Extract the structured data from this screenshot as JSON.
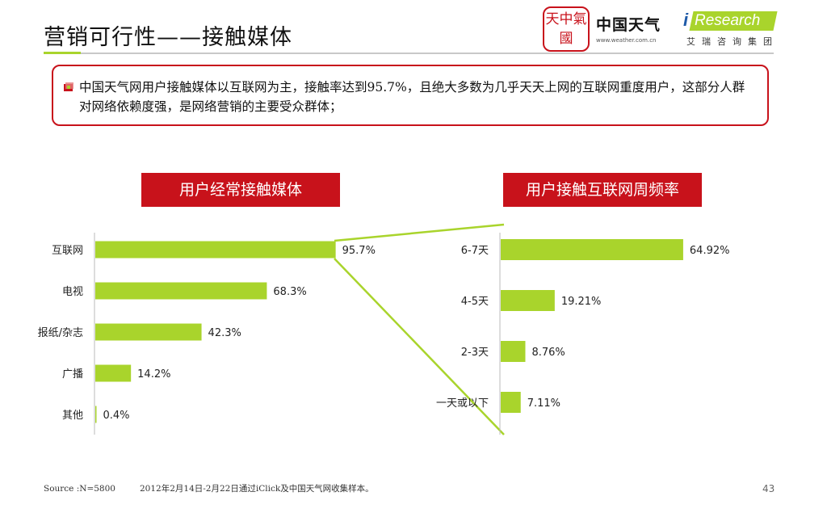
{
  "header": {
    "title": "营销可行性——接触媒体",
    "weather_logo": {
      "seal_text": "天中氣國",
      "name": "中国天气",
      "url": "www.weather.com.cn"
    },
    "iresearch_logo": {
      "i": "i",
      "word": "Research",
      "cn": "艾瑞咨询集团"
    }
  },
  "callout": {
    "text": "中国天气网用户接触媒体以互联网为主，接触率达到95.7%，且绝大多数为几乎天天上网的互联网重度用户，这部分人群对网络依赖度强，是网络营销的主要受众群体；"
  },
  "colors": {
    "accent": "#c8121b",
    "bar": "#a9d42c",
    "connector": "#a9d42c"
  },
  "chart_data": [
    {
      "type": "bar",
      "orientation": "horizontal",
      "title": "用户经常接触媒体",
      "categories": [
        "互联网",
        "电视",
        "报纸/杂志",
        "广播",
        "其他"
      ],
      "values": [
        95.7,
        68.3,
        42.3,
        14.2,
        0.4
      ],
      "value_labels": [
        "95.7%",
        "68.3%",
        "42.3%",
        "14.2%",
        "0.4%"
      ],
      "xlim": [
        0,
        100
      ],
      "grid": false
    },
    {
      "type": "bar",
      "orientation": "horizontal",
      "title": "用户接触互联网周频率",
      "categories": [
        "6-7天",
        "4-5天",
        "2-3天",
        "一天或以下"
      ],
      "values": [
        64.92,
        19.21,
        8.76,
        7.11
      ],
      "value_labels": [
        "64.92%",
        "19.21%",
        "8.76%",
        "7.11%"
      ],
      "xlim": [
        0,
        100
      ],
      "grid": false
    }
  ],
  "footer": {
    "source": "Source :N=5800",
    "note": "2012年2月14日-2月22日通过iClick及中国天气网收集样本。",
    "page": "43"
  }
}
